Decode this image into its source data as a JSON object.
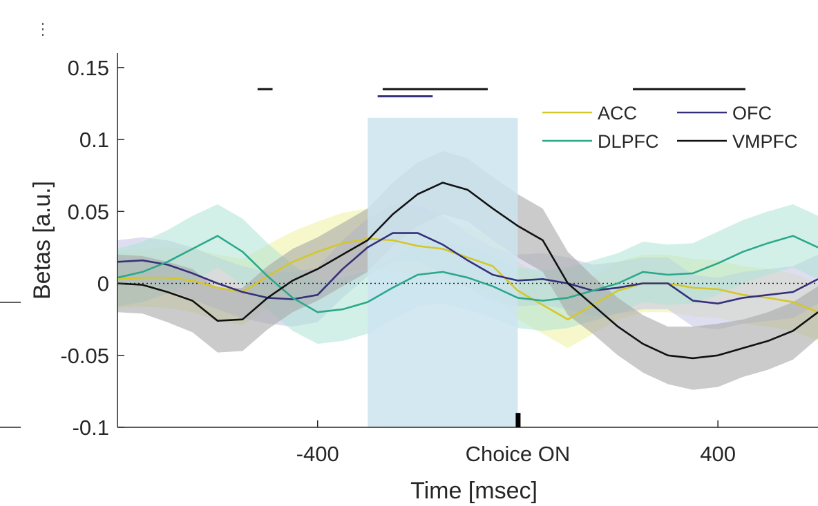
{
  "chart_data": {
    "type": "line",
    "xlabel": "Time [msec]",
    "ylabel": "Betas [a.u.]",
    "xlim": [
      -800,
      600
    ],
    "ylim": [
      -0.1,
      0.16
    ],
    "xticks": [
      {
        "value": -400,
        "label": "-400"
      },
      {
        "value": 0,
        "label": "Choice ON"
      },
      {
        "value": 400,
        "label": "400"
      }
    ],
    "yticks": [
      {
        "value": 0.15,
        "label": "0.15"
      },
      {
        "value": 0.1,
        "label": "0.1"
      },
      {
        "value": 0.05,
        "label": "0.05"
      },
      {
        "value": 0,
        "label": "0"
      },
      {
        "value": -0.05,
        "label": "-0.05"
      },
      {
        "value": -0.1,
        "label": "-0.1"
      }
    ],
    "zero_line": true,
    "shaded_window": {
      "x0": -300,
      "x1": 0,
      "y_top": 0.115,
      "color": "#cce4f0"
    },
    "choice_marker": {
      "x": 0,
      "y0": -0.1,
      "y1": -0.09
    },
    "significance_bars": [
      {
        "series": "VMPFC",
        "x0": -520,
        "x1": -490,
        "y": 0.135
      },
      {
        "series": "VMPFC",
        "x0": -270,
        "x1": -60,
        "y": 0.135
      },
      {
        "series": "OFC",
        "x0": -280,
        "x1": -170,
        "y": 0.13
      },
      {
        "series": "VMPFC",
        "x0": 230,
        "x1": 455,
        "y": 0.135
      }
    ],
    "legend": {
      "position": "top-right",
      "order": [
        "ACC",
        "OFC",
        "DLPFC",
        "VMPFC"
      ]
    },
    "x": [
      -800,
      -750,
      -700,
      -650,
      -600,
      -550,
      -500,
      -450,
      -400,
      -350,
      -300,
      -250,
      -200,
      -150,
      -100,
      -50,
      0,
      50,
      100,
      150,
      200,
      250,
      300,
      350,
      400,
      450,
      500,
      550,
      600
    ],
    "series": [
      {
        "name": "ACC",
        "color": "#d4c72a",
        "band_color": "#eef0a0",
        "band_opacity": 0.55,
        "values": [
          0.003,
          0.004,
          0.004,
          0.002,
          -0.003,
          -0.006,
          0.005,
          0.015,
          0.022,
          0.028,
          0.031,
          0.03,
          0.026,
          0.024,
          0.018,
          0.012,
          -0.005,
          -0.015,
          -0.025,
          -0.015,
          -0.005,
          0.0,
          0.0,
          -0.003,
          -0.004,
          -0.008,
          -0.01,
          -0.013,
          -0.02
        ],
        "err": [
          0.02,
          0.02,
          0.021,
          0.022,
          0.023,
          0.023,
          0.022,
          0.021,
          0.021,
          0.021,
          0.021,
          0.021,
          0.021,
          0.021,
          0.021,
          0.02,
          0.02,
          0.02,
          0.02,
          0.02,
          0.02,
          0.02,
          0.02,
          0.02,
          0.02,
          0.02,
          0.02,
          0.02,
          0.02
        ]
      },
      {
        "name": "OFC",
        "color": "#35307a",
        "band_color": "#c8c8e6",
        "band_opacity": 0.6,
        "values": [
          0.015,
          0.016,
          0.013,
          0.007,
          0.0,
          -0.006,
          -0.01,
          -0.011,
          -0.008,
          0.01,
          0.025,
          0.035,
          0.035,
          0.027,
          0.016,
          0.006,
          0.002,
          0.003,
          0.0,
          -0.005,
          -0.003,
          0.0,
          0.0,
          -0.012,
          -0.014,
          -0.01,
          -0.008,
          -0.006,
          0.003
        ],
        "err": [
          0.015,
          0.016,
          0.017,
          0.018,
          0.018,
          0.018,
          0.018,
          0.019,
          0.019,
          0.02,
          0.02,
          0.02,
          0.02,
          0.02,
          0.019,
          0.019,
          0.018,
          0.018,
          0.018,
          0.018,
          0.018,
          0.018,
          0.018,
          0.018,
          0.018,
          0.018,
          0.018,
          0.018,
          0.017
        ]
      },
      {
        "name": "DLPFC",
        "color": "#2aa88a",
        "band_color": "#aee3d6",
        "band_opacity": 0.55,
        "values": [
          0.004,
          0.008,
          0.015,
          0.024,
          0.033,
          0.022,
          0.005,
          -0.01,
          -0.02,
          -0.018,
          -0.013,
          -0.003,
          0.006,
          0.008,
          0.004,
          -0.002,
          -0.01,
          -0.012,
          -0.01,
          -0.005,
          0.0,
          0.008,
          0.006,
          0.007,
          0.014,
          0.022,
          0.028,
          0.033,
          0.025
        ],
        "err": [
          0.02,
          0.021,
          0.022,
          0.023,
          0.022,
          0.023,
          0.023,
          0.023,
          0.022,
          0.022,
          0.022,
          0.022,
          0.022,
          0.022,
          0.022,
          0.022,
          0.021,
          0.021,
          0.021,
          0.021,
          0.021,
          0.021,
          0.021,
          0.021,
          0.022,
          0.022,
          0.022,
          0.022,
          0.022
        ]
      },
      {
        "name": "VMPFC",
        "color": "#111111",
        "band_color": "#a8a8a8",
        "band_opacity": 0.6,
        "values": [
          0.0,
          -0.001,
          -0.006,
          -0.012,
          -0.026,
          -0.025,
          -0.01,
          0.002,
          0.01,
          0.02,
          0.03,
          0.048,
          0.062,
          0.07,
          0.065,
          0.052,
          0.04,
          0.03,
          0.0,
          -0.015,
          -0.03,
          -0.042,
          -0.05,
          -0.052,
          -0.05,
          -0.045,
          -0.04,
          -0.033,
          -0.02
        ],
        "err": [
          0.02,
          0.02,
          0.021,
          0.022,
          0.022,
          0.022,
          0.022,
          0.022,
          0.022,
          0.022,
          0.022,
          0.022,
          0.022,
          0.022,
          0.022,
          0.022,
          0.022,
          0.022,
          0.022,
          0.02,
          0.02,
          0.02,
          0.02,
          0.022,
          0.022,
          0.02,
          0.02,
          0.02,
          0.018
        ]
      }
    ]
  }
}
